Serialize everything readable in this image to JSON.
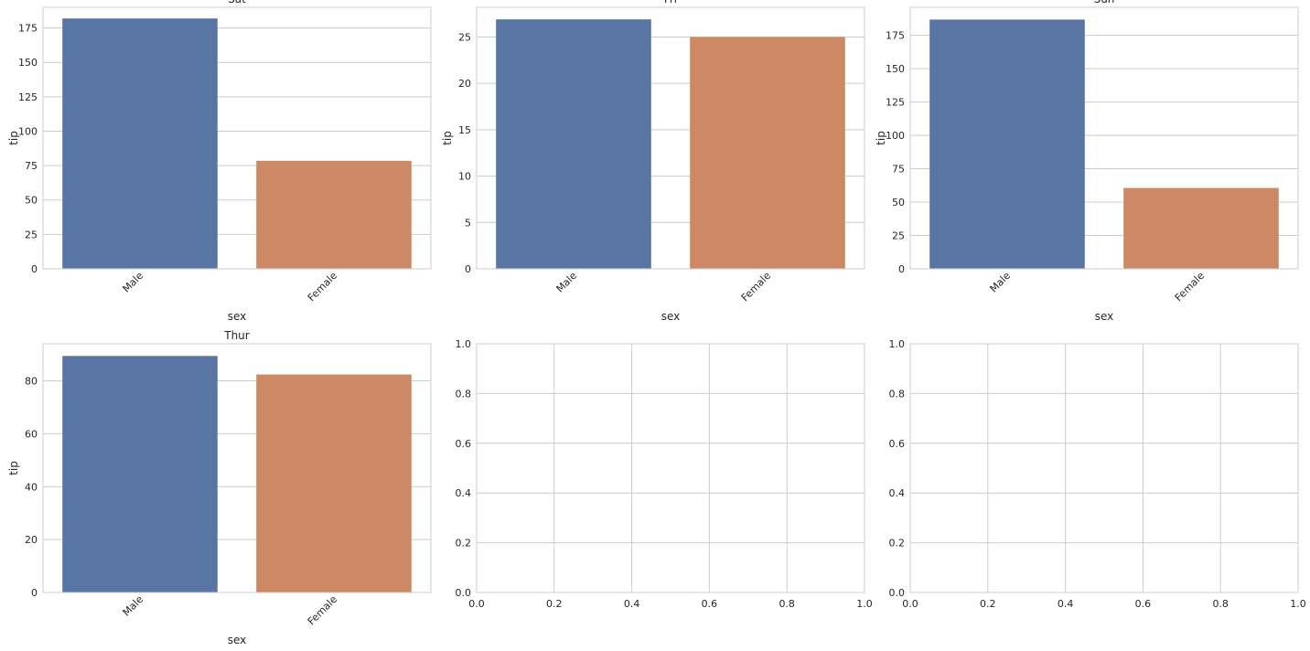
{
  "chart_data": [
    {
      "type": "bar",
      "title": "Sat",
      "xlabel": "sex",
      "ylabel": "tip",
      "categories": [
        "Male",
        "Female"
      ],
      "values": [
        181.9,
        78.5
      ],
      "ylim": [
        0,
        190
      ],
      "yticks": [
        0,
        25,
        50,
        75,
        100,
        125,
        150,
        175
      ],
      "colors": [
        "#5975a4",
        "#cc8963"
      ],
      "grid": true
    },
    {
      "type": "bar",
      "title": "Fri",
      "xlabel": "sex",
      "ylabel": "tip",
      "categories": [
        "Male",
        "Female"
      ],
      "values": [
        26.9,
        25.0
      ],
      "ylim": [
        0,
        28.2
      ],
      "yticks": [
        0,
        5,
        10,
        15,
        20,
        25
      ],
      "colors": [
        "#5975a4",
        "#cc8963"
      ],
      "grid": true
    },
    {
      "type": "bar",
      "title": "Sun",
      "xlabel": "sex",
      "ylabel": "tip",
      "categories": [
        "Male",
        "Female"
      ],
      "values": [
        186.8,
        60.6
      ],
      "ylim": [
        0,
        196
      ],
      "yticks": [
        0,
        25,
        50,
        75,
        100,
        125,
        150,
        175
      ],
      "colors": [
        "#5975a4",
        "#cc8963"
      ],
      "grid": true
    },
    {
      "type": "bar",
      "title": "Thur",
      "xlabel": "sex",
      "ylabel": "tip",
      "categories": [
        "Male",
        "Female"
      ],
      "values": [
        89.4,
        82.4
      ],
      "ylim": [
        0,
        94
      ],
      "yticks": [
        0,
        20,
        40,
        60,
        80
      ],
      "colors": [
        "#5975a4",
        "#cc8963"
      ],
      "grid": true
    },
    {
      "type": "empty",
      "xlim": [
        0,
        1
      ],
      "ylim": [
        0,
        1
      ],
      "xticks": [
        "0.0",
        "0.2",
        "0.4",
        "0.6",
        "0.8",
        "1.0"
      ],
      "yticks": [
        "0.0",
        "0.2",
        "0.4",
        "0.6",
        "0.8",
        "1.0"
      ],
      "grid": true
    },
    {
      "type": "empty",
      "xlim": [
        0,
        1
      ],
      "ylim": [
        0,
        1
      ],
      "xticks": [
        "0.0",
        "0.2",
        "0.4",
        "0.6",
        "0.8",
        "1.0"
      ],
      "yticks": [
        "0.0",
        "0.2",
        "0.4",
        "0.6",
        "0.8",
        "1.0"
      ],
      "grid": true
    }
  ]
}
